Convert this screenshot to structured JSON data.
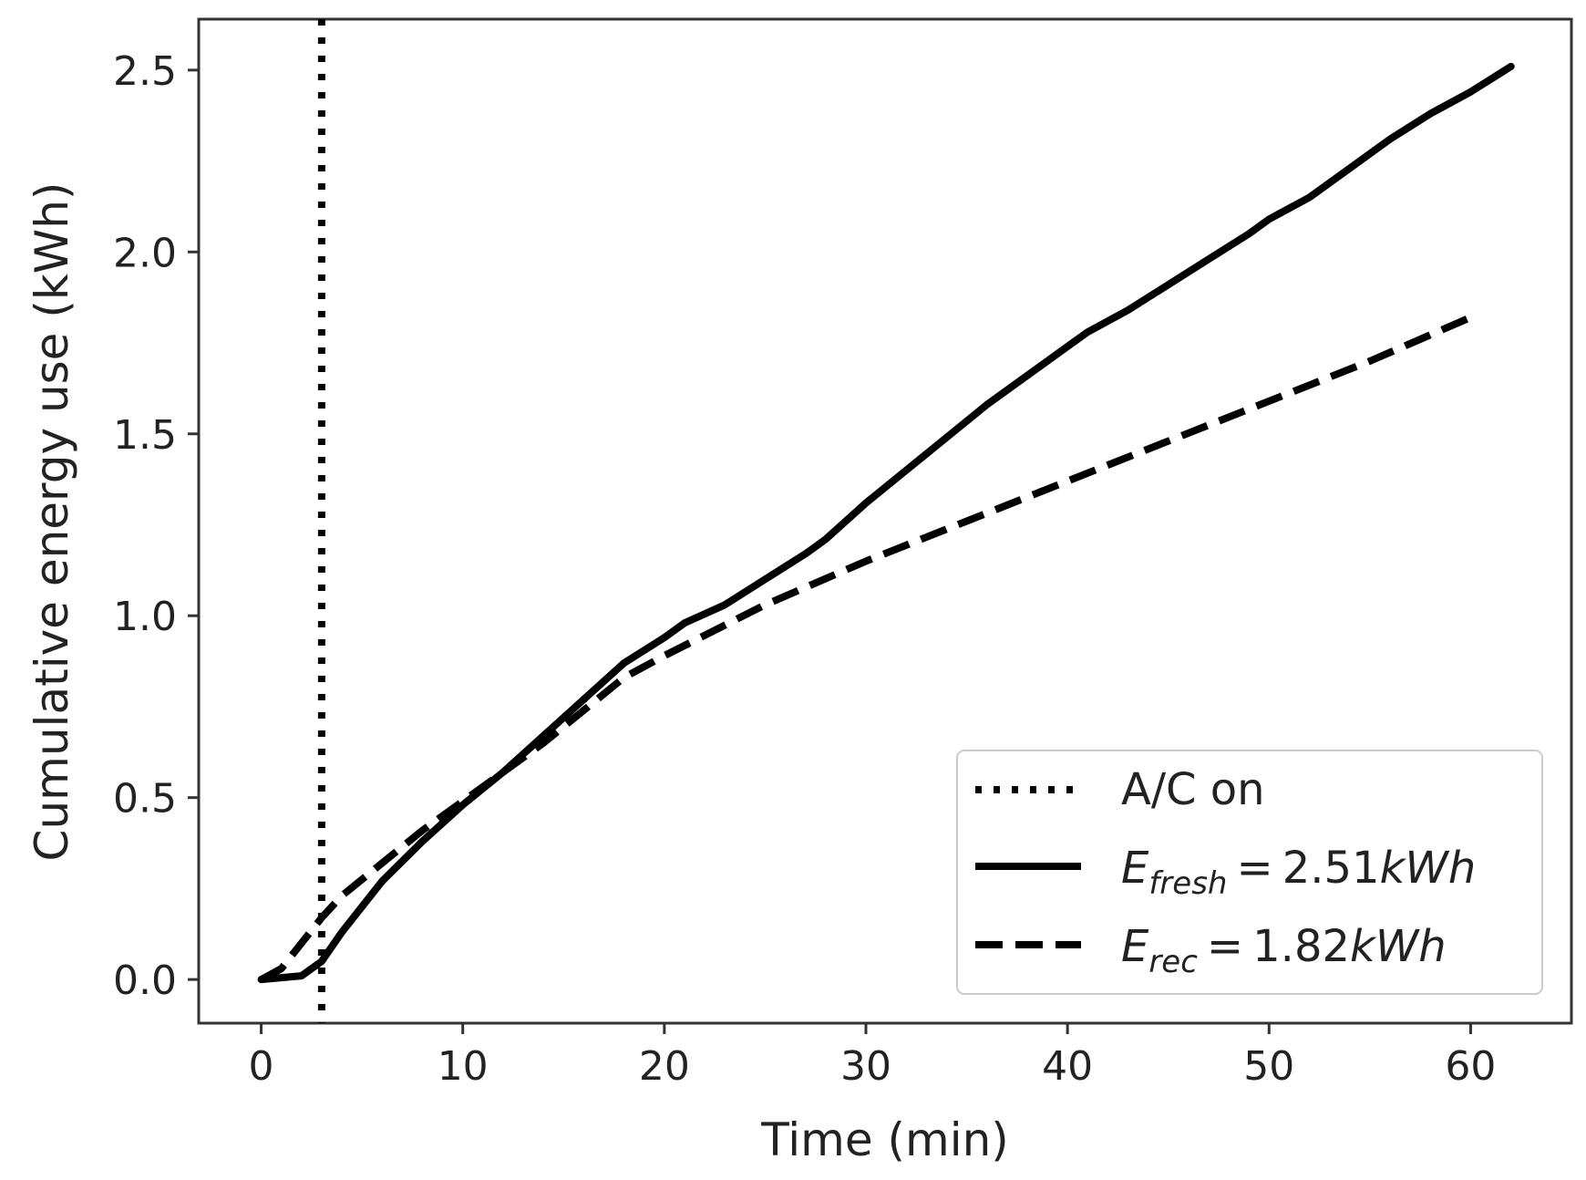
{
  "chart_data": {
    "type": "line",
    "title": "",
    "xlabel": "Time (min)",
    "ylabel": "Cumulative energy use (kWh)",
    "xlim": [
      -3.1,
      65.0
    ],
    "ylim": [
      -0.12,
      2.64
    ],
    "xticks": [
      0,
      10,
      20,
      30,
      40,
      50,
      60
    ],
    "yticks": [
      0.0,
      0.5,
      1.0,
      1.5,
      2.0,
      2.5
    ],
    "xtick_labels": [
      "0",
      "10",
      "20",
      "30",
      "40",
      "50",
      "60"
    ],
    "ytick_labels": [
      "0.0",
      "0.5",
      "1.0",
      "1.5",
      "2.0",
      "2.5"
    ],
    "grid": false,
    "legend_position": "lower-right",
    "vline": {
      "name": "A/C on",
      "x": 3,
      "style": "dotted"
    },
    "series": [
      {
        "name": "E_fresh",
        "style": "solid",
        "legend": {
          "symbol": "E",
          "subscript": "fresh",
          "equals": "=",
          "value": "2.51",
          "unit": "kWh"
        },
        "x": [
          0,
          1,
          2,
          3,
          4,
          6,
          8,
          10,
          12,
          14,
          16,
          18,
          20,
          21,
          23,
          25,
          27,
          28,
          30,
          32,
          34,
          36,
          38,
          40,
          41,
          43,
          45,
          47,
          49,
          50,
          52,
          54,
          56,
          58,
          60,
          62
        ],
        "y": [
          0.0,
          0.005,
          0.01,
          0.05,
          0.13,
          0.27,
          0.38,
          0.48,
          0.57,
          0.67,
          0.77,
          0.87,
          0.94,
          0.98,
          1.03,
          1.1,
          1.17,
          1.21,
          1.31,
          1.4,
          1.49,
          1.58,
          1.66,
          1.74,
          1.78,
          1.84,
          1.91,
          1.98,
          2.05,
          2.09,
          2.15,
          2.23,
          2.31,
          2.38,
          2.44,
          2.51
        ]
      },
      {
        "name": "E_rec",
        "style": "dashed",
        "legend": {
          "symbol": "E",
          "subscript": "rec",
          "equals": "=",
          "value": "1.82",
          "unit": "kWh"
        },
        "x": [
          0,
          1,
          2,
          3,
          4,
          6,
          8,
          10,
          12,
          14,
          16,
          18,
          20,
          25,
          30,
          35,
          40,
          45,
          50,
          55,
          60
        ],
        "y": [
          0.0,
          0.03,
          0.1,
          0.17,
          0.23,
          0.32,
          0.41,
          0.49,
          0.57,
          0.65,
          0.74,
          0.83,
          0.89,
          1.03,
          1.15,
          1.26,
          1.37,
          1.48,
          1.59,
          1.7,
          1.82
        ]
      }
    ]
  }
}
